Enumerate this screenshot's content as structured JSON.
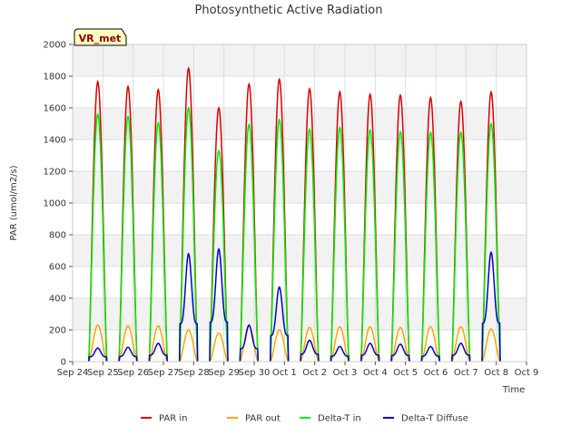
{
  "chart_data": {
    "type": "line",
    "title": "Photosynthetic Active Radiation",
    "xlabel": "Time",
    "ylabel": "PAR (umol/m2/s)",
    "badge": "VR_met",
    "ylim": [
      0,
      2000
    ],
    "yticks": [
      0,
      200,
      400,
      600,
      800,
      1000,
      1200,
      1400,
      1600,
      1800,
      2000
    ],
    "x_start": "2023-09-24",
    "xticks": [
      "Sep 24",
      "Sep 25",
      "Sep 26",
      "Sep 27",
      "Sep 28",
      "Sep 29",
      "Sep 30",
      "Oct 1",
      "Oct 2",
      "Oct 3",
      "Oct 4",
      "Oct 5",
      "Oct 6",
      "Oct 7",
      "Oct 8",
      "Oct 9"
    ],
    "grid": true,
    "legend_position": "bottom",
    "days": [
      "Sep 24",
      "Sep 25",
      "Sep 26",
      "Sep 27",
      "Sep 28",
      "Sep 29",
      "Sep 30",
      "Oct 1",
      "Oct 2",
      "Oct 3",
      "Oct 4",
      "Oct 5",
      "Oct 6",
      "Oct 7"
    ],
    "day_centers": [
      0.83,
      1.83,
      2.83,
      3.83,
      4.83,
      5.83,
      6.83,
      7.83,
      8.83,
      9.83,
      10.83,
      11.83,
      12.83,
      13.83
    ],
    "series": [
      {
        "name": "PAR in",
        "color": "#dd0000",
        "daily_peaks": [
          1765,
          1735,
          1715,
          1850,
          1600,
          1750,
          1780,
          1720,
          1700,
          1685,
          1680,
          1665,
          1640,
          1700
        ]
      },
      {
        "name": "PAR out",
        "color": "#ffa500",
        "daily_peaks": [
          230,
          225,
          225,
          200,
          180,
          225,
          200,
          215,
          220,
          220,
          215,
          220,
          220,
          205
        ]
      },
      {
        "name": "Delta-T in",
        "color": "#00ee00",
        "daily_peaks": [
          1560,
          1545,
          1505,
          1600,
          1330,
          1495,
          1525,
          1465,
          1475,
          1460,
          1450,
          1445,
          1445,
          1500
        ]
      },
      {
        "name": "Delta-T Diffuse",
        "color": "#0000cc",
        "daily_peaks": [
          85,
          90,
          115,
          680,
          710,
          230,
          470,
          135,
          95,
          115,
          110,
          95,
          115,
          690
        ]
      }
    ]
  }
}
